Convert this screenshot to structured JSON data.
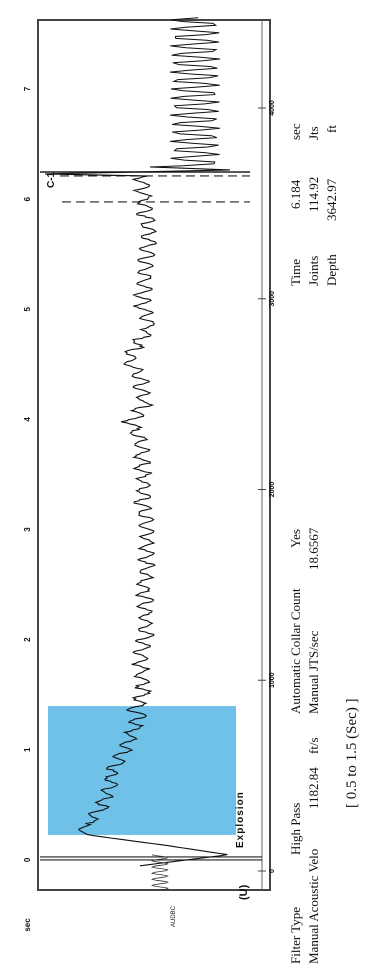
{
  "chart_data": {
    "type": "line",
    "orientation": "rotated-90",
    "time_axis_label": "sec",
    "time_ticks": [
      "0",
      "1",
      "2",
      "3",
      "4",
      "5",
      "6",
      "7"
    ],
    "depth_ticks": [
      "0",
      "1000",
      "2000",
      "3000",
      "4000"
    ],
    "time_range_sec": [
      -0.3,
      7.6
    ],
    "amplitude_range": [
      -1,
      1
    ],
    "series": [
      {
        "x": [
          -0.08,
          0.02,
          0.1,
          0.2,
          0.25,
          0.3,
          0.35,
          0.45,
          0.55,
          0.65,
          0.75,
          0.85,
          0.95,
          1.05,
          1.15,
          1.25,
          1.35,
          1.5,
          1.65,
          1.8,
          2.0,
          2.2,
          2.4,
          2.6,
          2.8,
          3.0,
          3.2,
          3.4,
          3.6,
          3.8,
          3.95,
          4.1,
          4.3,
          4.5,
          4.65,
          4.8,
          5.0,
          5.2,
          5.4,
          5.6,
          5.8,
          6.0,
          6.1,
          6.184
        ],
        "y": [
          0,
          0.88,
          0.3,
          -0.52,
          -0.62,
          -0.48,
          -0.5,
          -0.38,
          -0.36,
          -0.28,
          -0.3,
          -0.22,
          -0.18,
          -0.12,
          -0.06,
          -0.02,
          -0.04,
          0.04,
          0.02,
          0.0,
          0.05,
          0.06,
          0.04,
          0.06,
          0.08,
          0.06,
          0.02,
          0.04,
          0.02,
          0.0,
          -0.1,
          0.04,
          0.02,
          -0.1,
          -0.04,
          0.1,
          0.02,
          0.04,
          0.06,
          0.1,
          0.06,
          0.04,
          0.02,
          0.03
        ]
      }
    ],
    "highlight_window_sec": [
      0.2,
      1.37
    ],
    "marker_labels": [
      "Explosion",
      "(U)",
      "AUDBC",
      "C-1"
    ],
    "marker_events_sec": [
      0.0,
      6.184
    ]
  },
  "info": {
    "filter_label": "Filter Type",
    "filter_value": "High Pass",
    "velo_label": "Manual Acoustic Velo",
    "velo_value": "1182.84",
    "velo_unit": "ft/s",
    "collar_label": "Automatic Collar Count",
    "collar_value": "Yes",
    "jts_label": "Manual JTS/sec",
    "jts_value": "18.6567",
    "time_label": "Time",
    "time_value": "6.184",
    "time_unit": "sec",
    "joints_label": "Joints",
    "joints_value": "114.92",
    "joints_unit": "Jts",
    "depth_label": "Depth",
    "depth_value": "3642.97",
    "depth_unit": "ft",
    "footnote": "[ 0.5 to 1.5 (Sec) ]"
  },
  "colors": {
    "trace": "#111111",
    "highlight": "#6fc1e8",
    "frame": "#444444"
  }
}
